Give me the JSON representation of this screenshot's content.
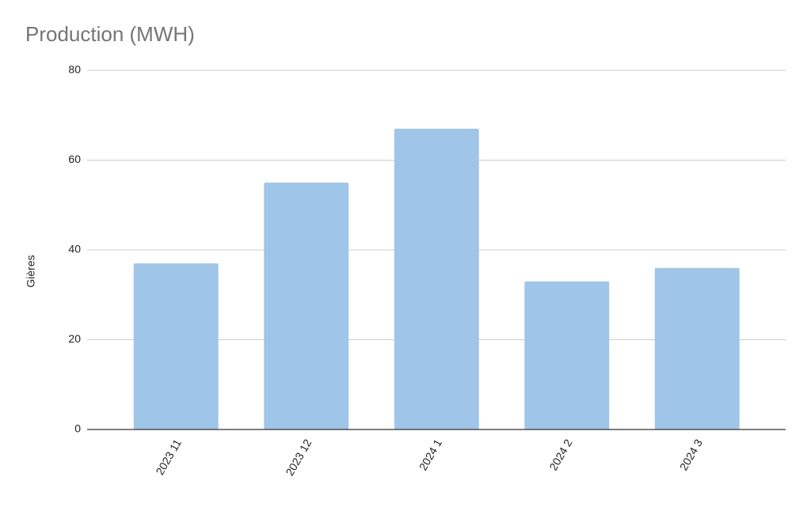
{
  "chart_data": {
    "type": "bar",
    "title": "Production (MWH)",
    "y_label": "Gières",
    "categories": [
      "2023 11",
      "2023 12",
      "2024 1",
      "2024 2",
      "2024 3"
    ],
    "values": [
      37,
      55,
      67,
      33,
      36
    ],
    "color": "#9fc5e8",
    "ylim": [
      0,
      80
    ],
    "yticks": [
      0,
      20,
      40,
      60,
      80
    ],
    "grid": true
  }
}
